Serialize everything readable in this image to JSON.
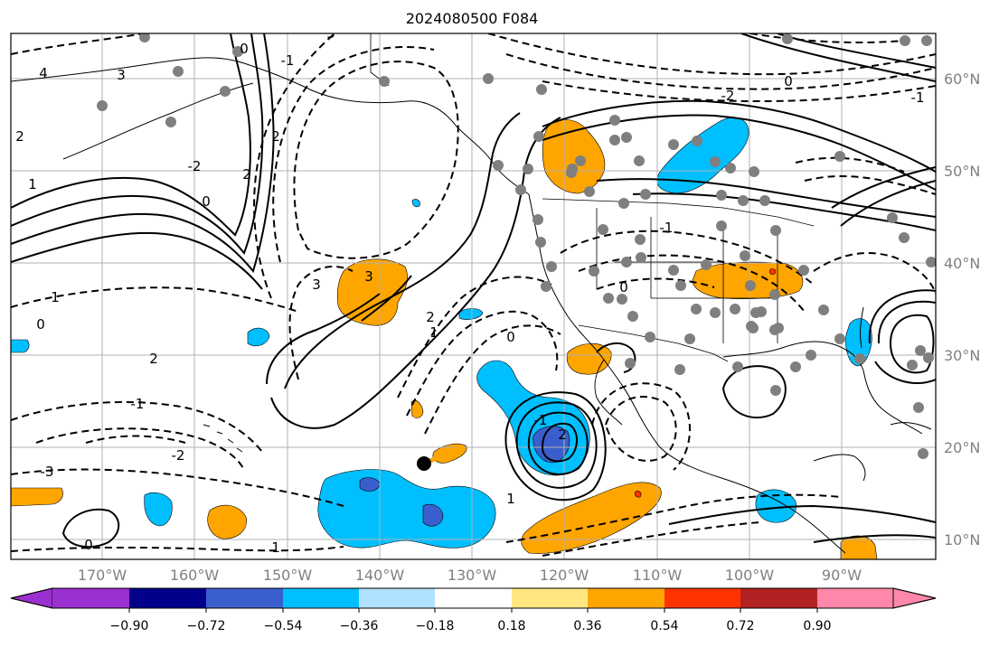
{
  "title": "2024080500 F084",
  "lat_labels": [
    "60°N",
    "50°N",
    "40°N",
    "30°N",
    "20°N",
    "10°N"
  ],
  "lon_labels": [
    "170°W",
    "160°W",
    "150°W",
    "140°W",
    "130°W",
    "120°W",
    "110°W",
    "100°W",
    "90°W"
  ],
  "colorbar": {
    "tick_labels": [
      "−0.90",
      "−0.72",
      "−0.54",
      "−0.36",
      "−0.18",
      "0.18",
      "0.36",
      "0.54",
      "0.72",
      "0.90"
    ],
    "colors": [
      "#9b30d0",
      "#00008b",
      "#3a5fcd",
      "#00bfff",
      "#b0e2ff",
      "#ffffff",
      "#ffe680",
      "#ffa500",
      "#ff3300",
      "#b22222",
      "#ff88aa"
    ],
    "extend": "both"
  },
  "contour_labels": [
    "4",
    "3",
    "2",
    "1",
    "0",
    "-1",
    "-2",
    "0",
    "2",
    "3",
    "2",
    "1",
    "0",
    "-1",
    "-2",
    "-3",
    "0",
    "1",
    "2",
    "3",
    "3",
    "2",
    "1",
    "0",
    "-1",
    "2",
    "1",
    "0",
    "-1",
    "-2",
    "0",
    "-1"
  ],
  "colors": {
    "frame": "#000000",
    "grid": "#b0b0b0",
    "axis_label": "#808080",
    "station": "#7f7f7f",
    "marker": "#000000"
  },
  "grid": true
}
